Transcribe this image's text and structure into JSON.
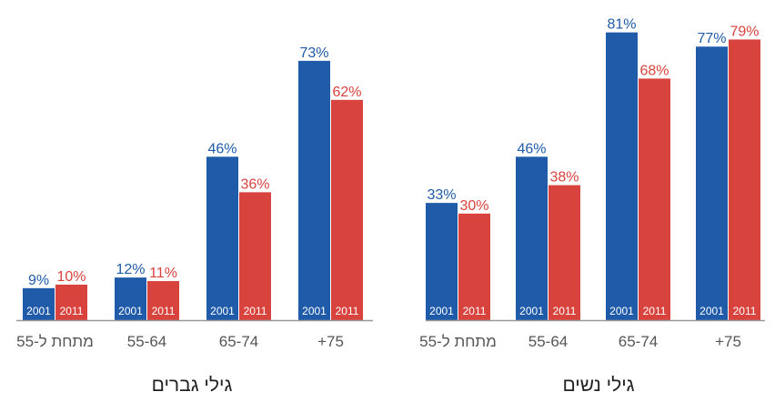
{
  "chart_data": [
    {
      "type": "bar",
      "title": "גילי נשים",
      "categories": [
        "+75",
        "65-74",
        "55-64",
        "מתחת ל-55"
      ],
      "series": [
        {
          "name": "2001",
          "values": [
            77,
            81,
            46,
            33
          ],
          "labels": [
            "77%",
            "81%",
            "46%",
            "33%"
          ]
        },
        {
          "name": "2011",
          "values": [
            79,
            68,
            38,
            30
          ],
          "labels": [
            "79%",
            "68%",
            "38%",
            "30%"
          ]
        }
      ],
      "ylim": [
        0,
        85
      ],
      "grid": false
    },
    {
      "type": "bar",
      "title": "גילי גברים",
      "categories": [
        "+75",
        "65-74",
        "55-64",
        "מתחת ל-55"
      ],
      "series": [
        {
          "name": "2001",
          "values": [
            73,
            46,
            12,
            9
          ],
          "labels": [
            "73%",
            "46%",
            "12%",
            "9%"
          ]
        },
        {
          "name": "2011",
          "values": [
            62,
            36,
            11,
            10
          ],
          "labels": [
            "62%",
            "36%",
            "11%",
            "10%"
          ]
        }
      ],
      "ylim": [
        0,
        85
      ],
      "grid": false
    }
  ],
  "colors": {
    "series_2001": "#1f5ba8",
    "series_2011": "#d9433e",
    "axis": "#999999",
    "category_label": "#555555",
    "title": "#222222"
  }
}
